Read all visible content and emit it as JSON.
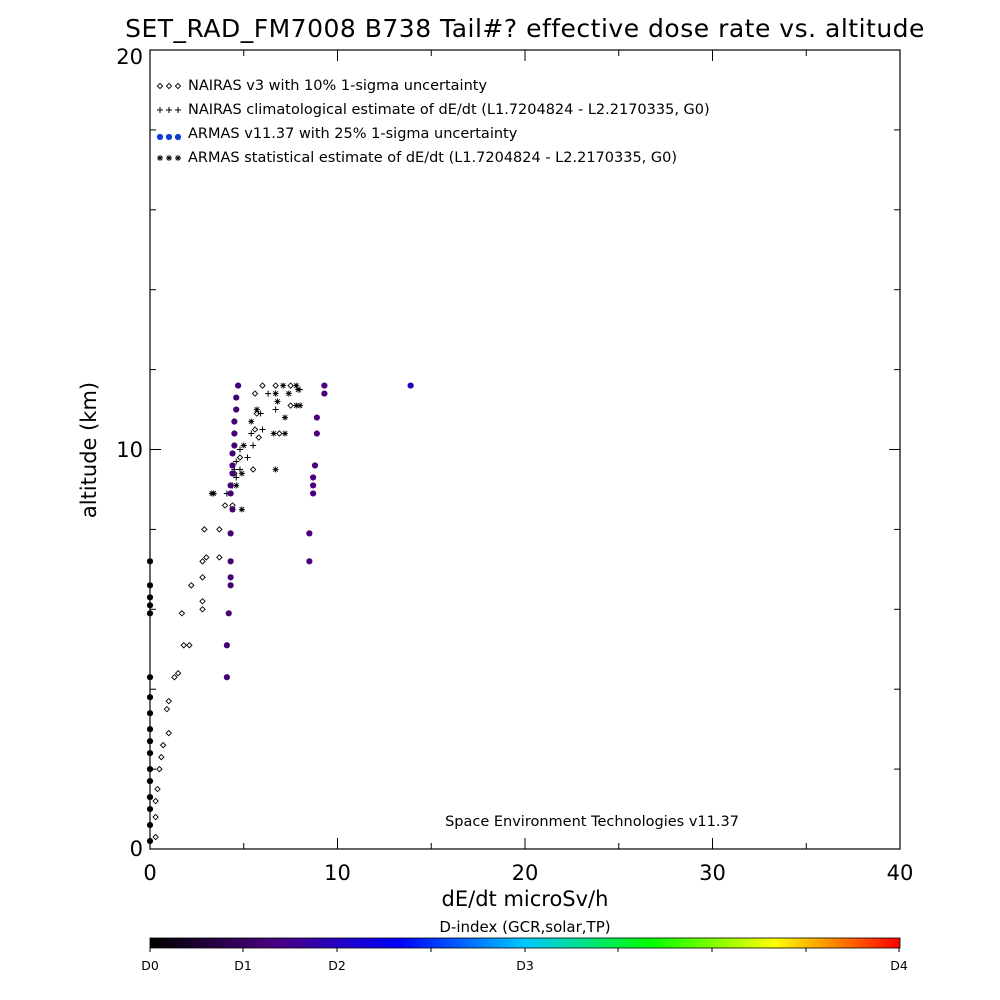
{
  "chart_data": {
    "type": "scatter",
    "title": "SET_RAD_FM7008  B738 Tail#? effective dose rate vs. altitude",
    "xlabel": "dE/dt microSv/h",
    "ylabel": "altitude (km)",
    "xlim": [
      0,
      40
    ],
    "ylim": [
      0,
      20
    ],
    "x_tick_labels": [
      "0",
      "10",
      "20",
      "30",
      "40"
    ],
    "y_tick_labels": [
      "0",
      "10",
      "20"
    ],
    "grid": false,
    "legend_position": "top-left",
    "annotation": "Space Environment Technologies v11.37",
    "colorbar": {
      "title": "D-index (GCR,solar,TP)",
      "labels": [
        "D0",
        "D1",
        "D2",
        "D3",
        "D4"
      ],
      "colors": [
        "#000000",
        "#4b0082",
        "#0000ff",
        "#00c8ff",
        "#00ff00",
        "#ffff00",
        "#ff0000"
      ]
    },
    "series": [
      {
        "name": "NAIRAS v3 with 10% 1-sigma uncertainty",
        "marker": "diamond",
        "color": "#000000",
        "points": [
          [
            0.3,
            0.3
          ],
          [
            0.3,
            0.8
          ],
          [
            0.3,
            1.2
          ],
          [
            0.4,
            1.5
          ],
          [
            0.5,
            2.0
          ],
          [
            0.6,
            2.3
          ],
          [
            0.7,
            2.6
          ],
          [
            1.0,
            2.9
          ],
          [
            0.9,
            3.5
          ],
          [
            1.0,
            3.7
          ],
          [
            1.3,
            4.3
          ],
          [
            1.5,
            4.4
          ],
          [
            1.8,
            5.1
          ],
          [
            2.1,
            5.1
          ],
          [
            1.7,
            5.9
          ],
          [
            2.8,
            6.0
          ],
          [
            2.8,
            6.2
          ],
          [
            2.2,
            6.6
          ],
          [
            2.8,
            6.8
          ],
          [
            2.8,
            7.2
          ],
          [
            3.0,
            7.3
          ],
          [
            3.7,
            7.3
          ],
          [
            2.9,
            8.0
          ],
          [
            3.7,
            8.0
          ],
          [
            4.0,
            8.6
          ],
          [
            4.4,
            8.6
          ],
          [
            4.5,
            9.4
          ],
          [
            4.8,
            9.8
          ],
          [
            5.5,
            9.5
          ],
          [
            5.8,
            10.3
          ],
          [
            5.6,
            10.5
          ],
          [
            5.7,
            10.9
          ],
          [
            5.6,
            11.4
          ],
          [
            6.0,
            11.6
          ],
          [
            6.7,
            11.6
          ],
          [
            7.5,
            11.6
          ],
          [
            6.9,
            10.4
          ],
          [
            7.5,
            11.1
          ]
        ]
      },
      {
        "name": "NAIRAS climatological estimate of dE/dt (L1.7204824 - L2.2170335, G0)",
        "marker": "plus",
        "color": "#000000",
        "points": [
          [
            4.1,
            8.9
          ],
          [
            4.4,
            9.1
          ],
          [
            4.6,
            9.3
          ],
          [
            4.5,
            9.5
          ],
          [
            4.8,
            9.5
          ],
          [
            4.6,
            9.7
          ],
          [
            5.2,
            9.8
          ],
          [
            4.8,
            10.0
          ],
          [
            5.5,
            10.1
          ],
          [
            5.4,
            10.4
          ],
          [
            6.0,
            10.5
          ],
          [
            5.9,
            10.9
          ],
          [
            6.7,
            11.0
          ],
          [
            6.3,
            11.4
          ],
          [
            8.0,
            11.5
          ]
        ]
      },
      {
        "name": "ARMAS v11.37 with 25% 1-sigma uncertainty",
        "marker": "dot",
        "color": "#0a3fd2",
        "points": [
          [
            0.0,
            0.2
          ],
          [
            0.0,
            0.6
          ],
          [
            0.0,
            1.0
          ],
          [
            0.0,
            1.3
          ],
          [
            0.0,
            1.7
          ],
          [
            0.0,
            2.0
          ],
          [
            0.0,
            2.4
          ],
          [
            0.0,
            2.7
          ],
          [
            0.0,
            3.0
          ],
          [
            0.0,
            3.4
          ],
          [
            0.0,
            3.8
          ],
          [
            0.0,
            4.3
          ],
          [
            0.0,
            5.9
          ],
          [
            0.0,
            6.1
          ],
          [
            0.0,
            6.3
          ],
          [
            0.0,
            6.6
          ],
          [
            0.0,
            7.2
          ],
          [
            4.1,
            4.3
          ],
          [
            4.1,
            5.1
          ],
          [
            4.2,
            5.9
          ],
          [
            4.3,
            6.6
          ],
          [
            4.3,
            6.8
          ],
          [
            4.3,
            7.2
          ],
          [
            4.3,
            7.9
          ],
          [
            4.4,
            8.5
          ],
          [
            4.3,
            8.9
          ],
          [
            4.3,
            9.1
          ],
          [
            4.4,
            9.4
          ],
          [
            4.4,
            9.6
          ],
          [
            4.4,
            9.9
          ],
          [
            4.5,
            10.1
          ],
          [
            4.5,
            10.4
          ],
          [
            4.5,
            10.7
          ],
          [
            4.6,
            11.0
          ],
          [
            4.6,
            11.3
          ],
          [
            4.7,
            11.6
          ],
          [
            8.5,
            7.2
          ],
          [
            8.5,
            7.9
          ],
          [
            8.7,
            8.9
          ],
          [
            8.7,
            9.1
          ],
          [
            8.7,
            9.3
          ],
          [
            8.8,
            9.6
          ],
          [
            8.9,
            10.4
          ],
          [
            8.9,
            10.8
          ],
          [
            9.3,
            11.4
          ],
          [
            9.3,
            11.6
          ],
          [
            13.9,
            11.6
          ]
        ],
        "d_index": [
          0,
          0,
          0,
          0,
          0,
          0,
          0,
          0,
          0,
          0,
          0,
          0,
          0,
          0,
          0,
          0,
          0,
          0.9,
          0.9,
          0.9,
          0.9,
          0.9,
          0.9,
          0.9,
          0.9,
          0.9,
          0.9,
          0.9,
          0.9,
          0.9,
          0.9,
          0.9,
          0.9,
          0.9,
          0.9,
          0.9,
          1.0,
          1.0,
          1.0,
          1.0,
          1.0,
          1.0,
          1.0,
          1.0,
          1.0,
          1.0,
          1.5
        ]
      },
      {
        "name": "ARMAS statistical estimate of dE/dt (L1.7204824 - L2.2170335, G0)",
        "marker": "asterisk",
        "color": "#000000",
        "points": [
          [
            3.3,
            8.9
          ],
          [
            3.4,
            8.9
          ],
          [
            4.4,
            8.5
          ],
          [
            4.9,
            8.5
          ],
          [
            4.6,
            9.1
          ],
          [
            4.9,
            9.4
          ],
          [
            5.0,
            10.1
          ],
          [
            5.4,
            10.7
          ],
          [
            5.7,
            11.0
          ],
          [
            6.6,
            10.4
          ],
          [
            6.7,
            11.4
          ],
          [
            7.2,
            10.4
          ],
          [
            7.2,
            10.8
          ],
          [
            7.4,
            11.4
          ],
          [
            7.9,
            11.5
          ],
          [
            7.8,
            11.1
          ],
          [
            8.0,
            11.1
          ],
          [
            6.7,
            9.5
          ],
          [
            6.8,
            11.2
          ],
          [
            7.1,
            11.6
          ],
          [
            7.8,
            11.6
          ]
        ]
      }
    ]
  }
}
